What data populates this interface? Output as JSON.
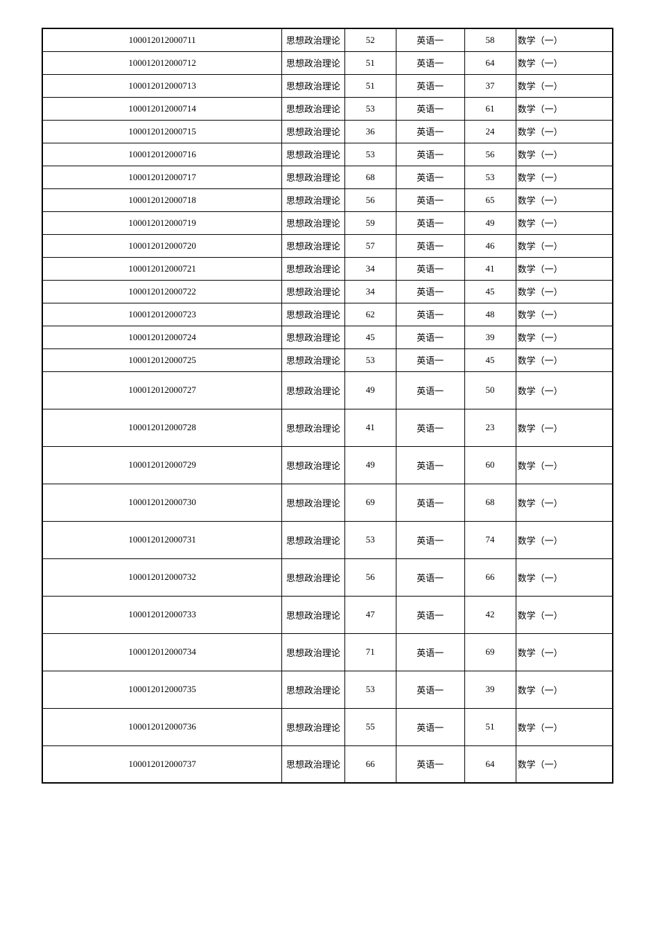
{
  "table": {
    "colors": {
      "border": "#000000",
      "text": "#000000",
      "background": "#ffffff"
    },
    "font_size": 13,
    "columns": {
      "id_width_pct": 42,
      "subj1_width_pct": 11,
      "score1_width_pct": 9,
      "subj2_width_pct": 12,
      "score2_width_pct": 9,
      "subj3_width_pct": 17
    },
    "subject1_label": "思想政治理论",
    "subject2_label": "英语一",
    "subject3_label": "数学（一）",
    "row_heights": {
      "short": 33,
      "tall": 54
    },
    "rows": [
      {
        "id": "100012012000711",
        "s1": 52,
        "s2": 58,
        "h": "short"
      },
      {
        "id": "100012012000712",
        "s1": 51,
        "s2": 64,
        "h": "short"
      },
      {
        "id": "100012012000713",
        "s1": 51,
        "s2": 37,
        "h": "short"
      },
      {
        "id": "100012012000714",
        "s1": 53,
        "s2": 61,
        "h": "short"
      },
      {
        "id": "100012012000715",
        "s1": 36,
        "s2": 24,
        "h": "short"
      },
      {
        "id": "100012012000716",
        "s1": 53,
        "s2": 56,
        "h": "short"
      },
      {
        "id": "100012012000717",
        "s1": 68,
        "s2": 53,
        "h": "short"
      },
      {
        "id": "100012012000718",
        "s1": 56,
        "s2": 65,
        "h": "short"
      },
      {
        "id": "100012012000719",
        "s1": 59,
        "s2": 49,
        "h": "short"
      },
      {
        "id": "100012012000720",
        "s1": 57,
        "s2": 46,
        "h": "short"
      },
      {
        "id": "100012012000721",
        "s1": 34,
        "s2": 41,
        "h": "short"
      },
      {
        "id": "100012012000722",
        "s1": 34,
        "s2": 45,
        "h": "short"
      },
      {
        "id": "100012012000723",
        "s1": 62,
        "s2": 48,
        "h": "short"
      },
      {
        "id": "100012012000724",
        "s1": 45,
        "s2": 39,
        "h": "short"
      },
      {
        "id": "100012012000725",
        "s1": 53,
        "s2": 45,
        "h": "short"
      },
      {
        "id": "100012012000727",
        "s1": 49,
        "s2": 50,
        "h": "tall"
      },
      {
        "id": "100012012000728",
        "s1": 41,
        "s2": 23,
        "h": "tall"
      },
      {
        "id": "100012012000729",
        "s1": 49,
        "s2": 60,
        "h": "tall"
      },
      {
        "id": "100012012000730",
        "s1": 69,
        "s2": 68,
        "h": "tall"
      },
      {
        "id": "100012012000731",
        "s1": 53,
        "s2": 74,
        "h": "tall"
      },
      {
        "id": "100012012000732",
        "s1": 56,
        "s2": 66,
        "h": "tall"
      },
      {
        "id": "100012012000733",
        "s1": 47,
        "s2": 42,
        "h": "tall"
      },
      {
        "id": "100012012000734",
        "s1": 71,
        "s2": 69,
        "h": "tall"
      },
      {
        "id": "100012012000735",
        "s1": 53,
        "s2": 39,
        "h": "tall"
      },
      {
        "id": "100012012000736",
        "s1": 55,
        "s2": 51,
        "h": "tall"
      },
      {
        "id": "100012012000737",
        "s1": 66,
        "s2": 64,
        "h": "tall"
      }
    ]
  }
}
